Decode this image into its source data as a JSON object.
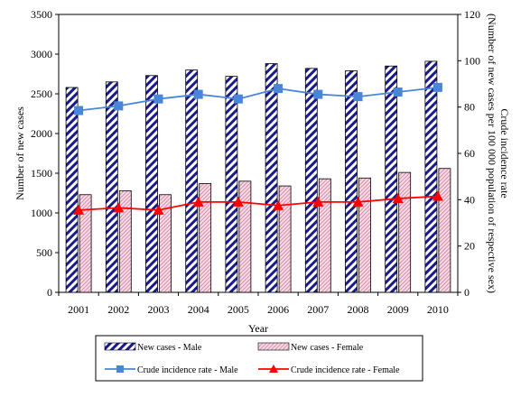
{
  "chart_data": {
    "type": "bar",
    "title": "",
    "categories": [
      "2001",
      "2002",
      "2003",
      "2004",
      "2005",
      "2006",
      "2007",
      "2008",
      "2009",
      "2010"
    ],
    "xlabel": "Year",
    "ylabel": "Number of new cases",
    "y2label_line1": "Crude incidence rate",
    "y2label_line2": "(Number of new cases per 100 000 population of respective sex)",
    "ylim": [
      0,
      3500
    ],
    "y2lim": [
      0,
      120
    ],
    "yticks": [
      "0",
      "500",
      "1000",
      "1500",
      "2000",
      "2500",
      "3000",
      "3500"
    ],
    "y2ticks": [
      "0",
      "20",
      "40",
      "60",
      "80",
      "100",
      "120"
    ],
    "grid": false,
    "legend_position": "bottom",
    "series": [
      {
        "name": "New cases - Male",
        "kind": "bar",
        "axis": "left",
        "color": "#1a1a8c",
        "pattern": "diagonal-stripes",
        "values": [
          2580,
          2650,
          2730,
          2800,
          2720,
          2880,
          2820,
          2790,
          2850,
          2910
        ]
      },
      {
        "name": "New cases - Female",
        "kind": "bar",
        "axis": "left",
        "color": "#e8b4c8",
        "pattern": "light-hatch",
        "values": [
          1230,
          1280,
          1230,
          1370,
          1400,
          1340,
          1430,
          1440,
          1510,
          1560
        ]
      },
      {
        "name": "Crude incidence rate - Male",
        "kind": "line",
        "axis": "right",
        "color": "#4a86d8",
        "marker": "square",
        "values": [
          78.5,
          80.5,
          83.5,
          85.5,
          83.5,
          88,
          85.5,
          84.5,
          86.5,
          88.5
        ]
      },
      {
        "name": "Crude incidence rate - Female",
        "kind": "line",
        "axis": "right",
        "color": "#ff0000",
        "marker": "triangle",
        "values": [
          35.5,
          36.5,
          35.5,
          39,
          39,
          37.5,
          39,
          39,
          40.5,
          41.5
        ]
      }
    ]
  }
}
